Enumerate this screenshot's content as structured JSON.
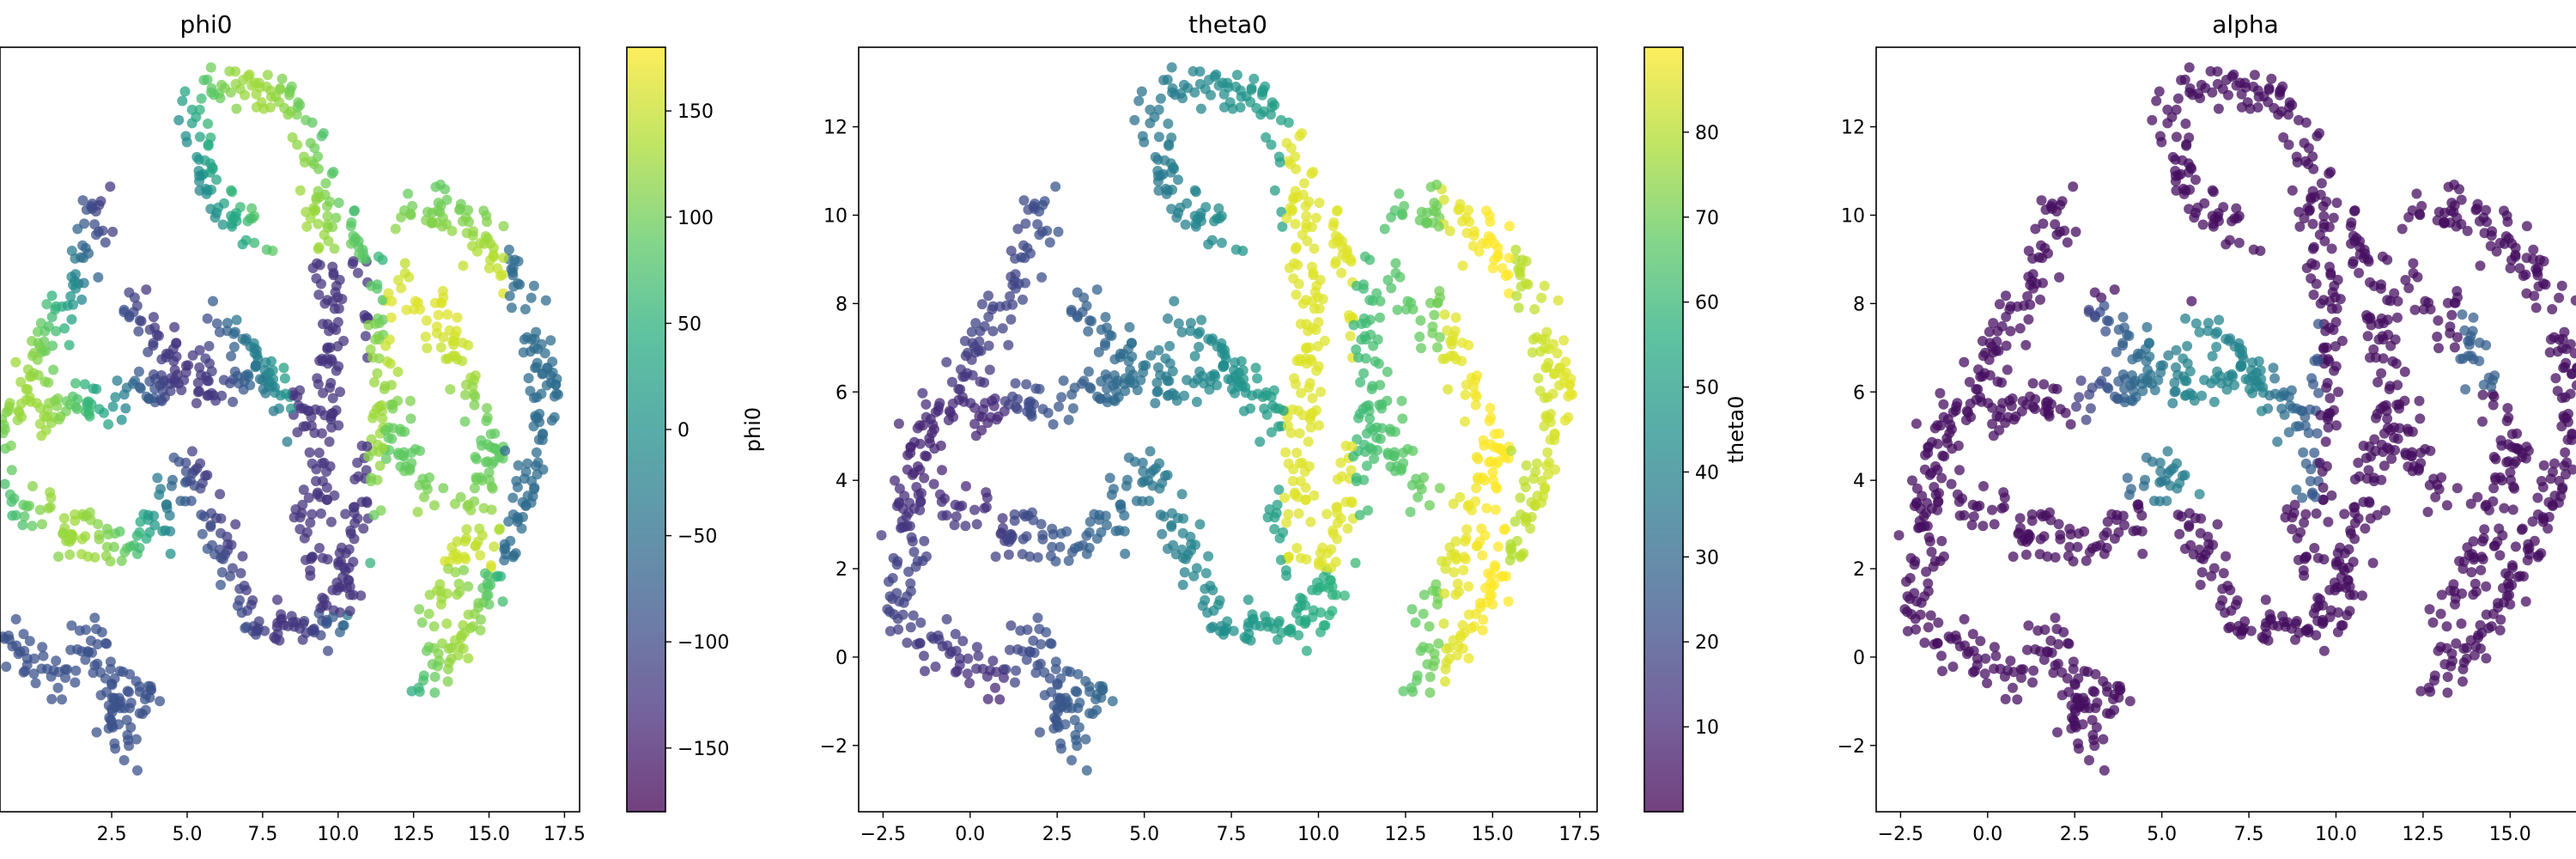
{
  "chart_data": [
    {
      "type": "scatter",
      "title": "phi0",
      "xticks": [
        2.5,
        5.0,
        7.5,
        10.0,
        12.5,
        15.0,
        17.5
      ],
      "xtick_labels": [
        "2.5",
        "5.0",
        "7.5",
        "10.0",
        "12.5",
        "15.0",
        "17.5"
      ],
      "xlim": [
        -1.2,
        18.0
      ],
      "ylim": [
        -3.5,
        13.8
      ],
      "colorbar": {
        "label": "phi0",
        "range": [
          -180,
          180
        ],
        "ticks": [
          -150,
          -100,
          -50,
          0,
          50,
          100,
          150
        ],
        "tick_labels": [
          "−150",
          "−100",
          "−50",
          "0",
          "50",
          "100",
          "150"
        ],
        "colormap": "viridis"
      }
    },
    {
      "type": "scatter",
      "title": "theta0",
      "xticks": [
        -2.5,
        0.0,
        2.5,
        5.0,
        7.5,
        10.0,
        12.5,
        15.0,
        17.5
      ],
      "xtick_labels": [
        "−2.5",
        "0.0",
        "2.5",
        "5.0",
        "7.5",
        "10.0",
        "12.5",
        "15.0",
        "17.5"
      ],
      "yticks": [
        -2,
        0,
        2,
        4,
        6,
        8,
        10,
        12
      ],
      "ytick_labels": [
        "−2",
        "0",
        "2",
        "4",
        "6",
        "8",
        "10",
        "12"
      ],
      "xlim": [
        -3.2,
        18.0
      ],
      "ylim": [
        -3.5,
        13.8
      ],
      "colorbar": {
        "label": "theta0",
        "range": [
          0,
          90
        ],
        "ticks": [
          10,
          20,
          30,
          40,
          50,
          60,
          70,
          80
        ],
        "tick_labels": [
          "10",
          "20",
          "30",
          "40",
          "50",
          "60",
          "70",
          "80"
        ],
        "colormap": "viridis"
      }
    },
    {
      "type": "scatter",
      "title": "alpha",
      "xticks": [
        -2.5,
        0.0,
        2.5,
        5.0,
        7.5,
        10.0,
        12.5,
        15.0
      ],
      "xtick_labels": [
        "−2.5",
        "0.0",
        "2.5",
        "5.0",
        "7.5",
        "10.0",
        "12.5",
        "15.0"
      ],
      "yticks": [
        -2,
        0,
        2,
        4,
        6,
        8,
        10,
        12
      ],
      "ytick_labels": [
        "−2",
        "0",
        "2",
        "4",
        "6",
        "8",
        "10",
        "12"
      ],
      "xlim": [
        -3.2,
        18.0
      ],
      "ylim": [
        -3.5,
        13.8
      ],
      "colormap": "viridis"
    }
  ]
}
